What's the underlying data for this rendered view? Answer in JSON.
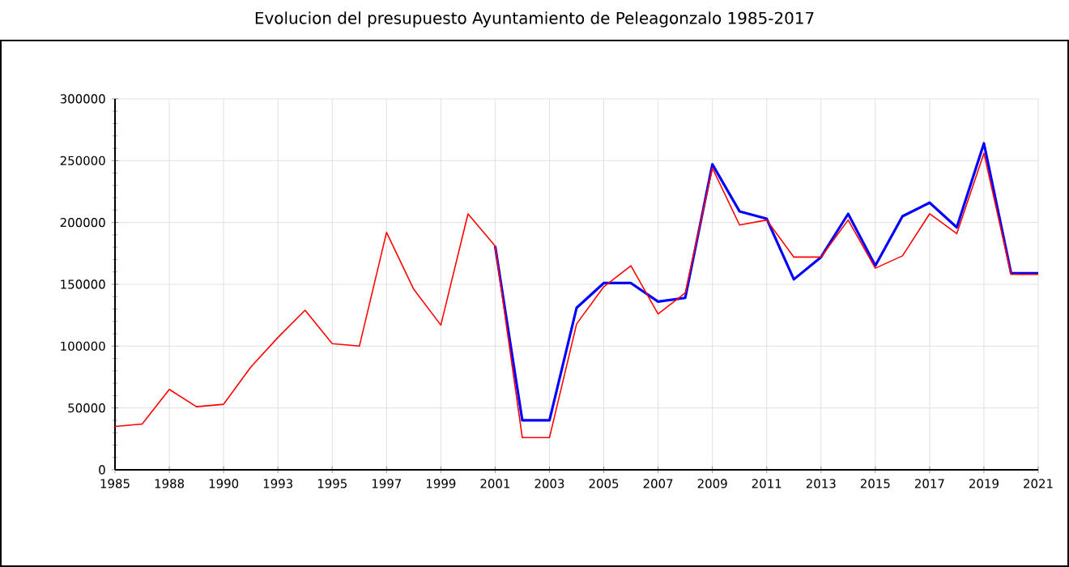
{
  "chart_data": {
    "type": "line",
    "title": "Evolucion del presupuesto Ayuntamiento de Peleagonzalo 1985-2017",
    "categories": [
      "1985",
      null,
      "1988",
      null,
      "1990",
      null,
      "1993",
      null,
      "1995",
      null,
      "1997",
      null,
      "1999",
      null,
      "2001",
      null,
      "2003",
      null,
      "2005",
      null,
      "2007",
      null,
      "2009",
      null,
      "2011",
      null,
      "2013",
      null,
      "2015",
      null,
      "2017",
      null,
      "2019",
      null,
      "2021"
    ],
    "series": [
      {
        "color": "#0000ff",
        "values": [
          null,
          null,
          null,
          null,
          null,
          null,
          null,
          null,
          null,
          null,
          null,
          null,
          null,
          null,
          181000,
          40000,
          40000,
          131000,
          151000,
          151000,
          136000,
          139000,
          247000,
          209000,
          203000,
          154000,
          172000,
          207000,
          165000,
          205000,
          216000,
          196000,
          264000,
          159000,
          159000
        ]
      },
      {
        "color": "#ff0000",
        "values": [
          35000,
          37000,
          65000,
          51000,
          53000,
          83000,
          107000,
          129000,
          102000,
          100000,
          192000,
          146000,
          117000,
          207000,
          181000,
          26000,
          26000,
          118000,
          148000,
          165000,
          126000,
          143000,
          244000,
          198000,
          202000,
          172000,
          172000,
          202000,
          163000,
          173000,
          207000,
          191000,
          256000,
          158000,
          158000
        ]
      }
    ],
    "ylim": [
      0,
      300000
    ],
    "yticks": [
      0,
      50000,
      100000,
      150000,
      200000,
      250000,
      300000
    ],
    "grid": true
  }
}
